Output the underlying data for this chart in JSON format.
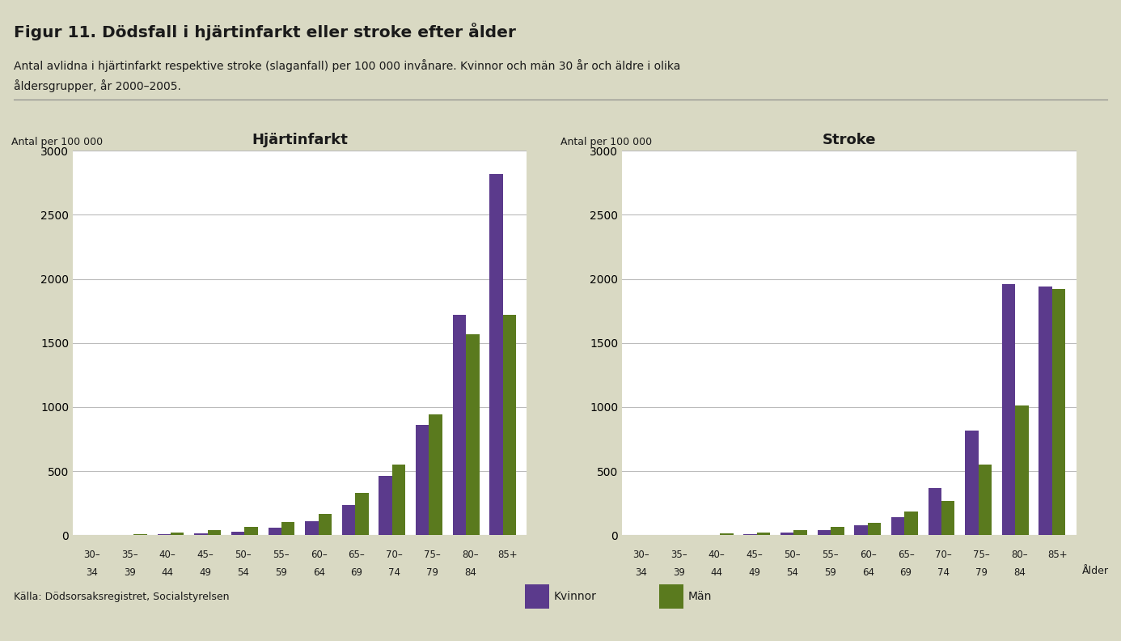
{
  "title": "Figur 11. Dödsfall i hjärtinfarkt eller stroke efter ålder",
  "subtitle_line1": "Antal avlidna i hjärtinfarkt respektive stroke (slaganfall) per 100 000 invånare. Kvinnor och män 30 år och äldre i olika",
  "subtitle_line2": "åldersgrupper, år 2000–2005.",
  "ylabel": "Antal per 100 000",
  "xlabel_stroke": "Ålder",
  "source": "Källa: Dödsorsaksregistret, Socialstyrelsen",
  "legend_kvinnor": "Kvinnor",
  "legend_man": "Män",
  "chart1_title": "Hjärtinfarkt",
  "chart2_title": "Stroke",
  "age_groups_line1": [
    "30–",
    "35–",
    "40–",
    "45–",
    "50–",
    "55–",
    "60–",
    "65–",
    "70–",
    "75–",
    "80–",
    "85+"
  ],
  "age_groups_line2": [
    "34",
    "39",
    "44",
    "49",
    "54",
    "59",
    "64",
    "69",
    "74",
    "79",
    "84",
    ""
  ],
  "hj_kvinnor": [
    3,
    4,
    8,
    15,
    30,
    60,
    110,
    235,
    460,
    860,
    1720,
    2820
  ],
  "hj_man": [
    5,
    8,
    20,
    38,
    65,
    100,
    165,
    330,
    550,
    940,
    1570,
    1720
  ],
  "stroke_kvinnor": [
    2,
    3,
    5,
    10,
    22,
    42,
    75,
    140,
    370,
    815,
    1960,
    1940
  ],
  "stroke_man": [
    3,
    5,
    12,
    22,
    42,
    62,
    95,
    185,
    270,
    550,
    1010,
    1920
  ],
  "color_kvinnor": "#5b3a8c",
  "color_man": "#5a7a1e",
  "background_color": "#d9d9c3",
  "plot_background": "#ffffff",
  "ylim": [
    0,
    3000
  ],
  "yticks": [
    0,
    500,
    1000,
    1500,
    2000,
    2500,
    3000
  ]
}
